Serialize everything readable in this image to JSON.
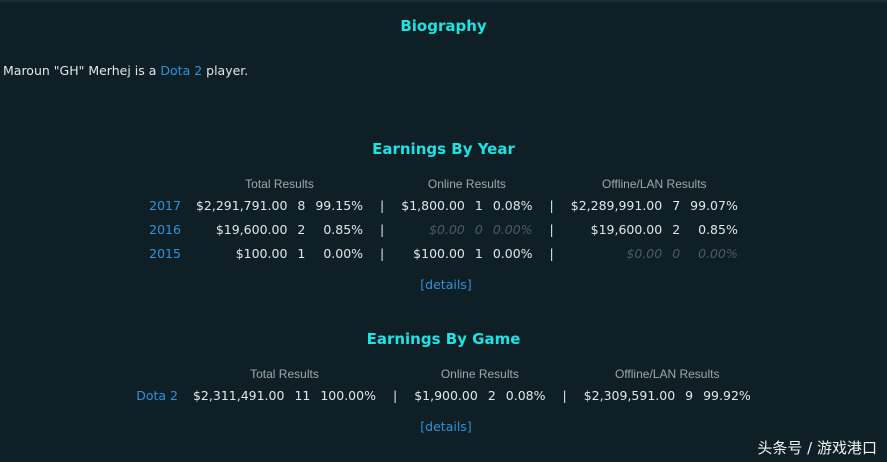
{
  "biography": {
    "title": "Biography",
    "text_before": "Maroun \"GH\" Merhej is a ",
    "link": "Dota 2",
    "text_after": " player."
  },
  "earnings_by_year": {
    "title": "Earnings By Year",
    "headers": [
      "Total Results",
      "Online Results",
      "Offline/LAN Results"
    ],
    "rows": [
      {
        "label": "2017",
        "total": [
          "$2,291,791.00",
          "8",
          "99.15%"
        ],
        "online": [
          "$1,800.00",
          "1",
          "0.08%"
        ],
        "offline": [
          "$2,289,991.00",
          "7",
          "99.07%"
        ],
        "online_zero": false,
        "offline_zero": false
      },
      {
        "label": "2016",
        "total": [
          "$19,600.00",
          "2",
          "0.85%"
        ],
        "online": [
          "$0.00",
          "0",
          "0.00%"
        ],
        "offline": [
          "$19,600.00",
          "2",
          "0.85%"
        ],
        "online_zero": true,
        "offline_zero": false
      },
      {
        "label": "2015",
        "total": [
          "$100.00",
          "1",
          "0.00%"
        ],
        "online": [
          "$100.00",
          "1",
          "0.00%"
        ],
        "offline": [
          "$0.00",
          "0",
          "0.00%"
        ],
        "online_zero": false,
        "offline_zero": true
      }
    ],
    "separator": "|",
    "details": "[details]"
  },
  "earnings_by_game": {
    "title": "Earnings By Game",
    "headers": [
      "Total Results",
      "Online Results",
      "Offline/LAN Results"
    ],
    "rows": [
      {
        "label": "Dota 2",
        "total": [
          "$2,311,491.00",
          "11",
          "100.00%"
        ],
        "online": [
          "$1,900.00",
          "2",
          "0.08%"
        ],
        "offline": [
          "$2,309,591.00",
          "9",
          "99.92%"
        ],
        "online_zero": false,
        "offline_zero": false
      }
    ],
    "separator": "|",
    "details": "[details]"
  },
  "watermark": "头条号 / 游戏港口",
  "colors": {
    "background": "#0f1f26",
    "heading": "#1ee3e3",
    "link": "#2d93dc",
    "text": "#dfe8ea"
  }
}
